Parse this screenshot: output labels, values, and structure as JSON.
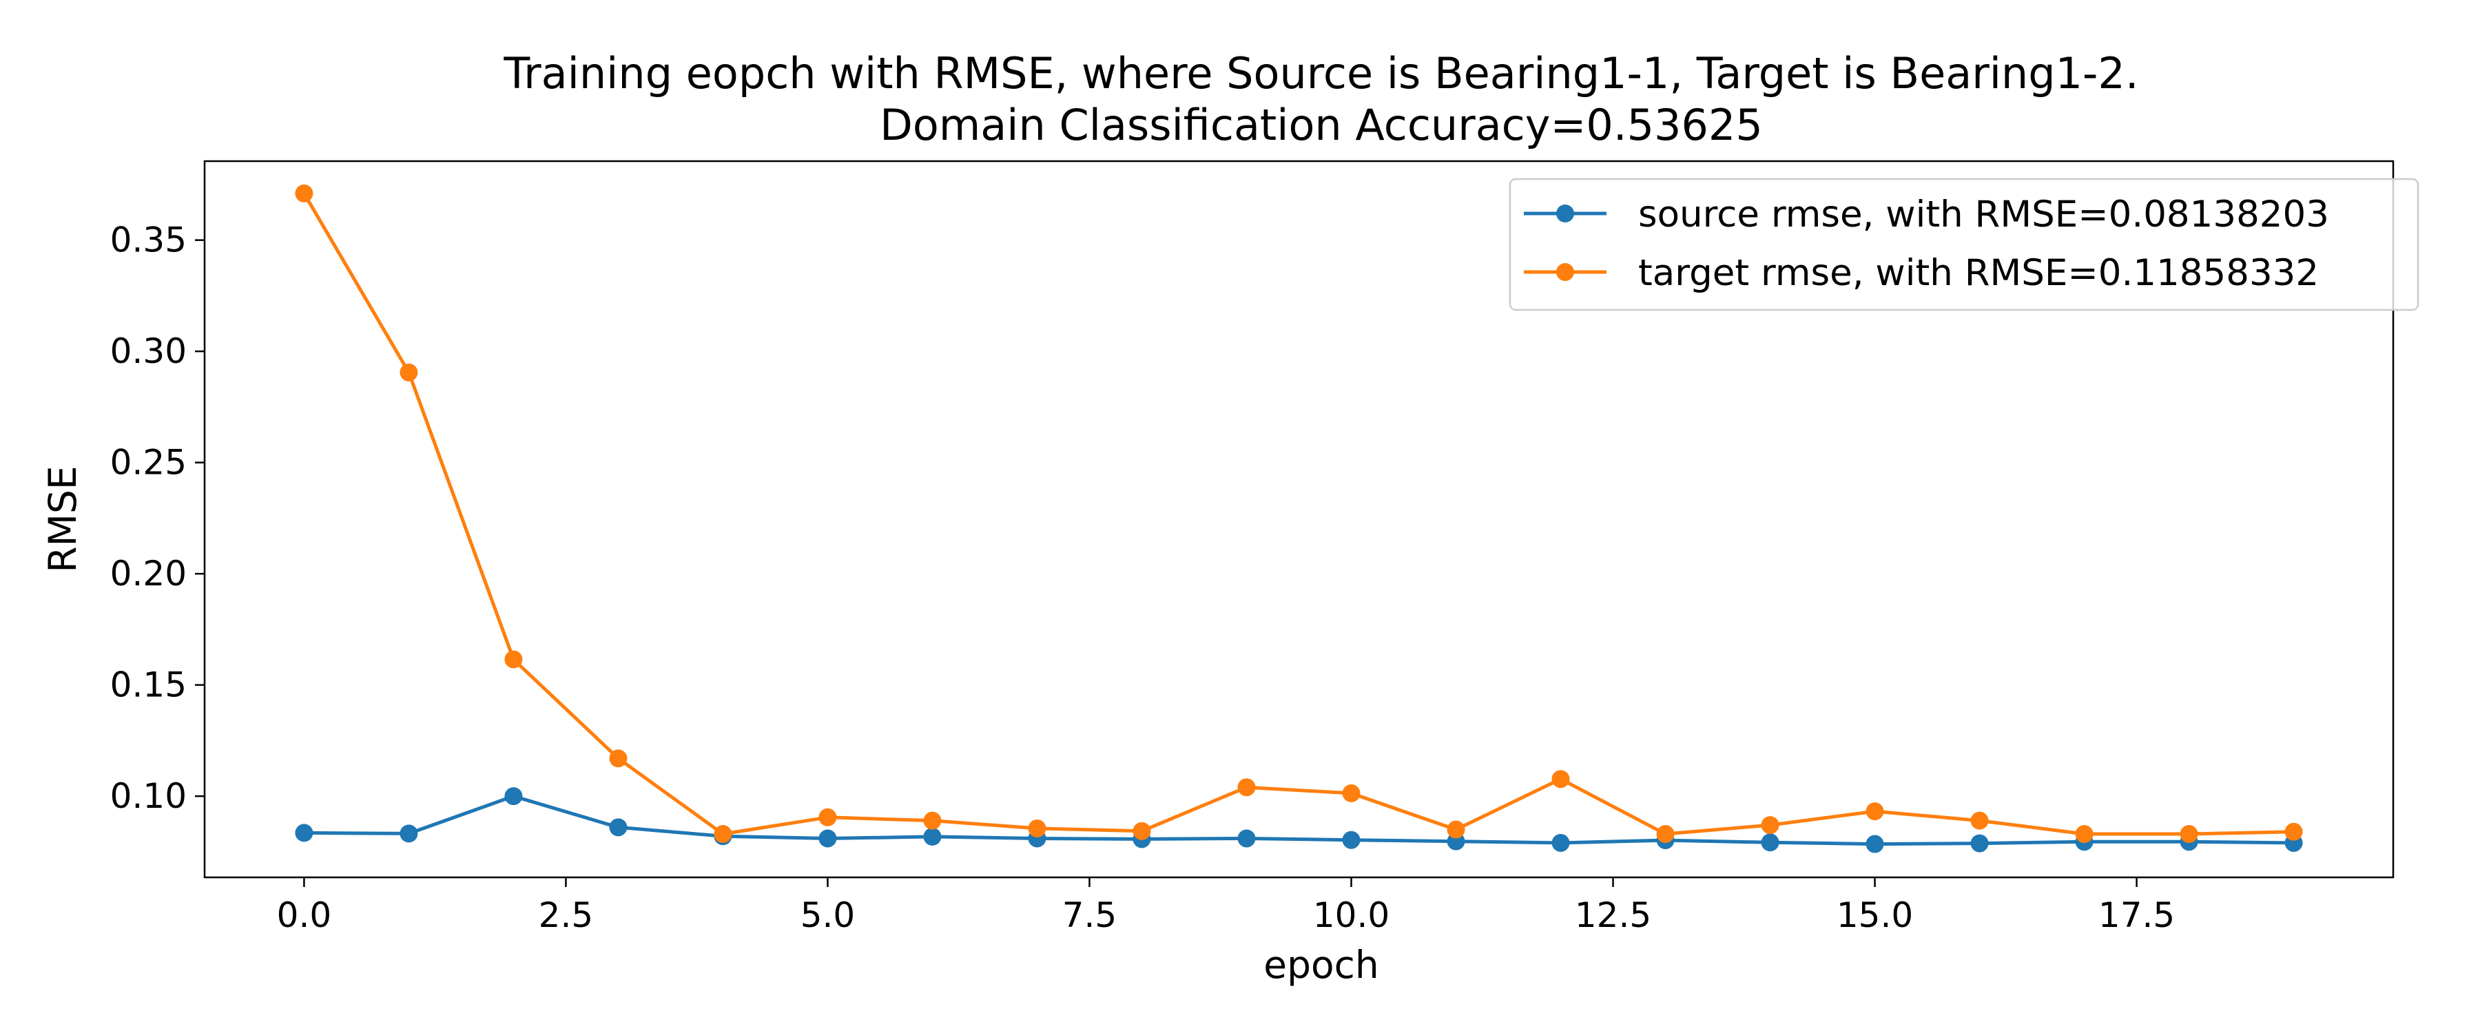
{
  "chart_data": {
    "type": "line",
    "title_line1": "Training eopch with RMSE, where Source is Bearing1-1, Target is Bearing1-2.",
    "title_line2": "Domain Classification Accuracy=0.53625",
    "xlabel": "epoch",
    "ylabel": "RMSE",
    "xlim": [
      -0.95,
      19.95
    ],
    "ylim": [
      0.0635,
      0.3855
    ],
    "xticks": [
      0.0,
      2.5,
      5.0,
      7.5,
      10.0,
      12.5,
      15.0,
      17.5
    ],
    "xtick_labels": [
      "0.0",
      "2.5",
      "5.0",
      "7.5",
      "10.0",
      "12.5",
      "15.0",
      "17.5"
    ],
    "yticks": [
      0.1,
      0.15,
      0.2,
      0.25,
      0.3,
      0.35
    ],
    "ytick_labels": [
      "0.10",
      "0.15",
      "0.20",
      "0.25",
      "0.30",
      "0.35"
    ],
    "grid": false,
    "legend_position": "top-right",
    "x": [
      0,
      1,
      2,
      3,
      4,
      5,
      6,
      7,
      8,
      9,
      10,
      11,
      12,
      13,
      14,
      15,
      16,
      17,
      18,
      19
    ],
    "series": [
      {
        "name": "source rmse, with RMSE=0.08138203",
        "color": "#1f77b4",
        "marker": "circle",
        "values": [
          0.0835,
          0.0832,
          0.1,
          0.086,
          0.082,
          0.081,
          0.0818,
          0.081,
          0.0807,
          0.081,
          0.0803,
          0.0797,
          0.079,
          0.0802,
          0.0792,
          0.0785,
          0.0788,
          0.0795,
          0.0795,
          0.079
        ]
      },
      {
        "name": "target rmse, with RMSE=0.11858332",
        "color": "#ff7f0e",
        "marker": "circle",
        "values": [
          0.371,
          0.2905,
          0.1615,
          0.117,
          0.083,
          0.0905,
          0.089,
          0.0855,
          0.0843,
          0.104,
          0.1013,
          0.085,
          0.1077,
          0.083,
          0.087,
          0.0932,
          0.089,
          0.083,
          0.083,
          0.084
        ]
      }
    ]
  }
}
